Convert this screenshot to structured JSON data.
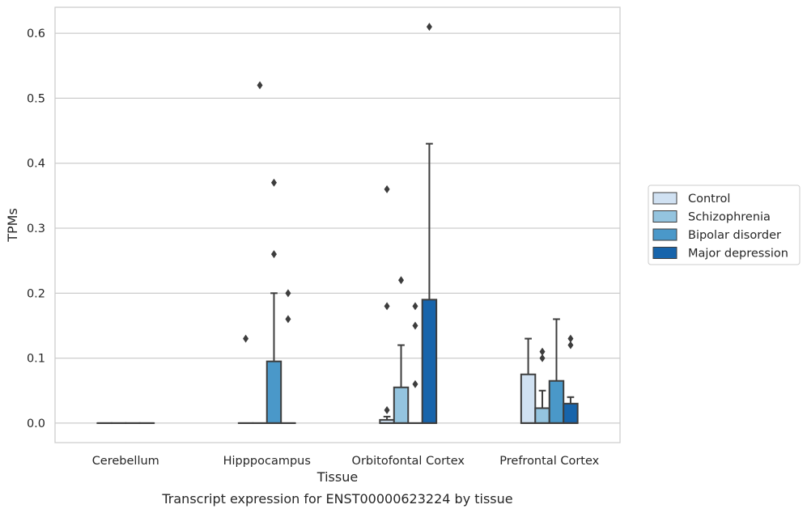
{
  "chart_data": {
    "type": "box",
    "title": "",
    "caption": "Transcript expression for ENST00000623224 by tissue",
    "xlabel": "Tissue",
    "ylabel": "TPMs",
    "categories": [
      "Cerebellum",
      "Hipppocampus",
      "Orbitofontal Cortex",
      "Prefrontal Cortex"
    ],
    "ylim": [
      -0.03,
      0.64
    ],
    "yticks": [
      0.0,
      0.1,
      0.2,
      0.3,
      0.4,
      0.5,
      0.6
    ],
    "ytick_labels": [
      "0.0",
      "0.1",
      "0.2",
      "0.3",
      "0.4",
      "0.5",
      "0.6"
    ],
    "grid": "horizontal",
    "legend_position": "right",
    "series": [
      {
        "name": "Control",
        "color": "#d0e1f2",
        "boxes": [
          {
            "q1": 0.0,
            "median": 0.0,
            "q3": 0.0,
            "whislo": 0.0,
            "whishi": 0.0,
            "fliers": []
          },
          {
            "q1": 0.0,
            "median": 0.0,
            "q3": 0.0,
            "whislo": 0.0,
            "whishi": 0.0,
            "fliers": [
              0.13
            ]
          },
          {
            "q1": 0.0,
            "median": 0.0,
            "q3": 0.005,
            "whislo": 0.0,
            "whishi": 0.01,
            "fliers": [
              0.02,
              0.18,
              0.36
            ]
          },
          {
            "q1": 0.0,
            "median": 0.0,
            "q3": 0.075,
            "whislo": 0.0,
            "whishi": 0.13,
            "fliers": []
          }
        ]
      },
      {
        "name": "Schizophrenia",
        "color": "#94c4df",
        "boxes": [
          {
            "q1": 0.0,
            "median": 0.0,
            "q3": 0.0,
            "whislo": 0.0,
            "whishi": 0.0,
            "fliers": []
          },
          {
            "q1": 0.0,
            "median": 0.0,
            "q3": 0.0,
            "whislo": 0.0,
            "whishi": 0.0,
            "fliers": [
              0.52
            ]
          },
          {
            "q1": 0.0,
            "median": 0.0,
            "q3": 0.055,
            "whislo": 0.0,
            "whishi": 0.12,
            "fliers": [
              0.22
            ]
          },
          {
            "q1": 0.0,
            "median": 0.0,
            "q3": 0.023,
            "whislo": 0.0,
            "whishi": 0.05,
            "fliers": [
              0.1,
              0.11
            ]
          }
        ]
      },
      {
        "name": "Bipolar disorder",
        "color": "#4a98c9",
        "boxes": [
          {
            "q1": 0.0,
            "median": 0.0,
            "q3": 0.0,
            "whislo": 0.0,
            "whishi": 0.0,
            "fliers": []
          },
          {
            "q1": 0.0,
            "median": 0.0,
            "q3": 0.095,
            "whislo": 0.0,
            "whishi": 0.2,
            "fliers": [
              0.26,
              0.37
            ]
          },
          {
            "q1": 0.0,
            "median": 0.0,
            "q3": 0.0,
            "whislo": 0.0,
            "whishi": 0.0,
            "fliers": [
              0.06,
              0.15,
              0.18
            ]
          },
          {
            "q1": 0.0,
            "median": 0.0,
            "q3": 0.065,
            "whislo": 0.0,
            "whishi": 0.16,
            "fliers": []
          }
        ]
      },
      {
        "name": "Major depression",
        "color": "#1764ab",
        "boxes": [
          {
            "q1": 0.0,
            "median": 0.0,
            "q3": 0.0,
            "whislo": 0.0,
            "whishi": 0.0,
            "fliers": []
          },
          {
            "q1": 0.0,
            "median": 0.0,
            "q3": 0.0,
            "whislo": 0.0,
            "whishi": 0.0,
            "fliers": [
              0.16,
              0.2
            ]
          },
          {
            "q1": 0.0,
            "median": 0.0,
            "q3": 0.19,
            "whislo": 0.0,
            "whishi": 0.43,
            "fliers": [
              0.61
            ]
          },
          {
            "q1": 0.0,
            "median": 0.0,
            "q3": 0.03,
            "whislo": 0.0,
            "whishi": 0.04,
            "fliers": [
              0.12,
              0.13
            ]
          }
        ]
      }
    ]
  }
}
